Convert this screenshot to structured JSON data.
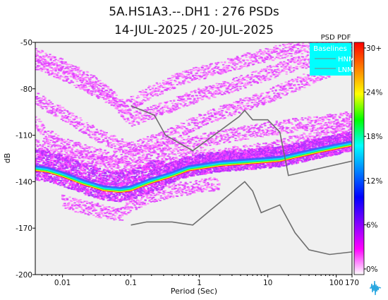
{
  "chart_data": {
    "type": "heatmap",
    "title": "5A.HS1A3.--.DH1 : 276 PSDs",
    "subtitle": "14-JUL-2025 / 20-JUL-2025",
    "xlabel": "Period (Sec)",
    "ylabel": "dB",
    "x_scale": "log",
    "xlim": [
      0.004,
      170
    ],
    "ylim": [
      -200,
      -50
    ],
    "x_ticks": [
      {
        "value": 0.01,
        "label": "0.01"
      },
      {
        "value": 0.1,
        "label": "0.1"
      },
      {
        "value": 1,
        "label": "1"
      },
      {
        "value": 10,
        "label": "10"
      },
      {
        "value": 100,
        "label": "100"
      },
      {
        "value": 170,
        "label": "170"
      }
    ],
    "y_ticks": [
      {
        "value": -50,
        "label": "-50"
      },
      {
        "value": -80,
        "label": "-80"
      },
      {
        "value": -110,
        "label": "-110"
      },
      {
        "value": -140,
        "label": "-140"
      },
      {
        "value": -170,
        "label": "-170"
      },
      {
        "value": -200,
        "label": "-200"
      }
    ],
    "colorbar": {
      "title": "PSD PDF",
      "ticks": [
        "30+",
        "24%",
        "18%",
        "12%",
        "6%",
        "0%"
      ],
      "colors": [
        "#ff0000",
        "#ff7f00",
        "#ffff00",
        "#00ff00",
        "#00ffff",
        "#0080ff",
        "#0000ff",
        "#8000ff",
        "#ff00ff",
        "#ffffff"
      ]
    },
    "legend": {
      "title": "Baselines",
      "position": "top-right",
      "background": "#00ffff",
      "items": [
        "HNM",
        "LNM"
      ]
    },
    "baselines": [
      {
        "name": "HNM",
        "points": [
          [
            0.1,
            -91
          ],
          [
            0.22,
            -97
          ],
          [
            0.32,
            -110
          ],
          [
            0.8,
            -120
          ],
          [
            3.8,
            -98
          ],
          [
            4.6,
            -94
          ],
          [
            6,
            -100
          ],
          [
            10,
            -100
          ],
          [
            15,
            -108
          ],
          [
            20,
            -136
          ],
          [
            200,
            -126
          ]
        ]
      },
      {
        "name": "LNM",
        "points": [
          [
            0.1,
            -168
          ],
          [
            0.17,
            -166
          ],
          [
            0.4,
            -166
          ],
          [
            0.8,
            -168
          ],
          [
            3.8,
            -143
          ],
          [
            4.6,
            -140
          ],
          [
            6,
            -146
          ],
          [
            8,
            -160
          ],
          [
            15,
            -155
          ],
          [
            25,
            -173
          ],
          [
            40,
            -184
          ],
          [
            80,
            -187
          ],
          [
            200,
            -185
          ]
        ]
      }
    ],
    "density": {
      "main_mode_x": [
        0.004,
        0.006,
        0.01,
        0.02,
        0.04,
        0.07,
        0.1,
        0.2,
        0.4,
        0.7,
        1,
        2,
        4,
        8,
        15,
        30,
        60,
        100,
        170
      ],
      "main_mode_y": [
        -132,
        -133,
        -136,
        -141,
        -145,
        -146,
        -145,
        -140,
        -136,
        -132,
        -131,
        -129,
        -128,
        -127,
        -126,
        -123,
        -120,
        -118,
        -116
      ],
      "upper_bands": [
        {
          "x": [
            0.004,
            0.01,
            0.04,
            0.1,
            0.3,
            1,
            3,
            10,
            30,
            100,
            170
          ],
          "y": [
            -86,
            -96,
            -112,
            -119,
            -112,
            -101,
            -93,
            -85,
            -76,
            -66,
            -61
          ]
        },
        {
          "x": [
            0.004,
            0.01,
            0.03,
            0.08,
            0.2,
            0.5,
            2,
            8,
            30,
            100,
            170
          ],
          "y": [
            -58,
            -65,
            -76,
            -92,
            -82,
            -74,
            -66,
            -59,
            -53,
            -50,
            -50
          ]
        },
        {
          "x": [
            0.004,
            0.01,
            0.05,
            0.1,
            0.3,
            1,
            3,
            10,
            30,
            100,
            170
          ],
          "y": [
            -63,
            -70,
            -86,
            -100,
            -93,
            -84,
            -78,
            -70,
            -63,
            -58,
            -56
          ]
        },
        {
          "x": [
            0.004,
            0.006,
            0.01,
            0.02,
            0.05,
            0.1,
            0.3,
            1,
            5,
            20,
            100,
            170
          ],
          "y": [
            -101,
            -110,
            -116,
            -120,
            -125,
            -124,
            -118,
            -114,
            -108,
            -104,
            -100,
            -99
          ]
        },
        {
          "x": [
            0.004,
            0.01,
            0.03,
            0.1,
            0.3,
            1,
            3,
            10,
            40,
            170
          ],
          "y": [
            -117,
            -121,
            -127,
            -131,
            -127,
            -124,
            -122,
            -119,
            -112,
            -102
          ]
        },
        {
          "x": [
            0.01,
            0.03,
            0.07,
            0.1,
            0.2,
            0.5,
            1,
            2
          ],
          "y": [
            -153,
            -158,
            -162,
            -155,
            -149,
            -145,
            -143,
            -141
          ]
        }
      ]
    }
  }
}
